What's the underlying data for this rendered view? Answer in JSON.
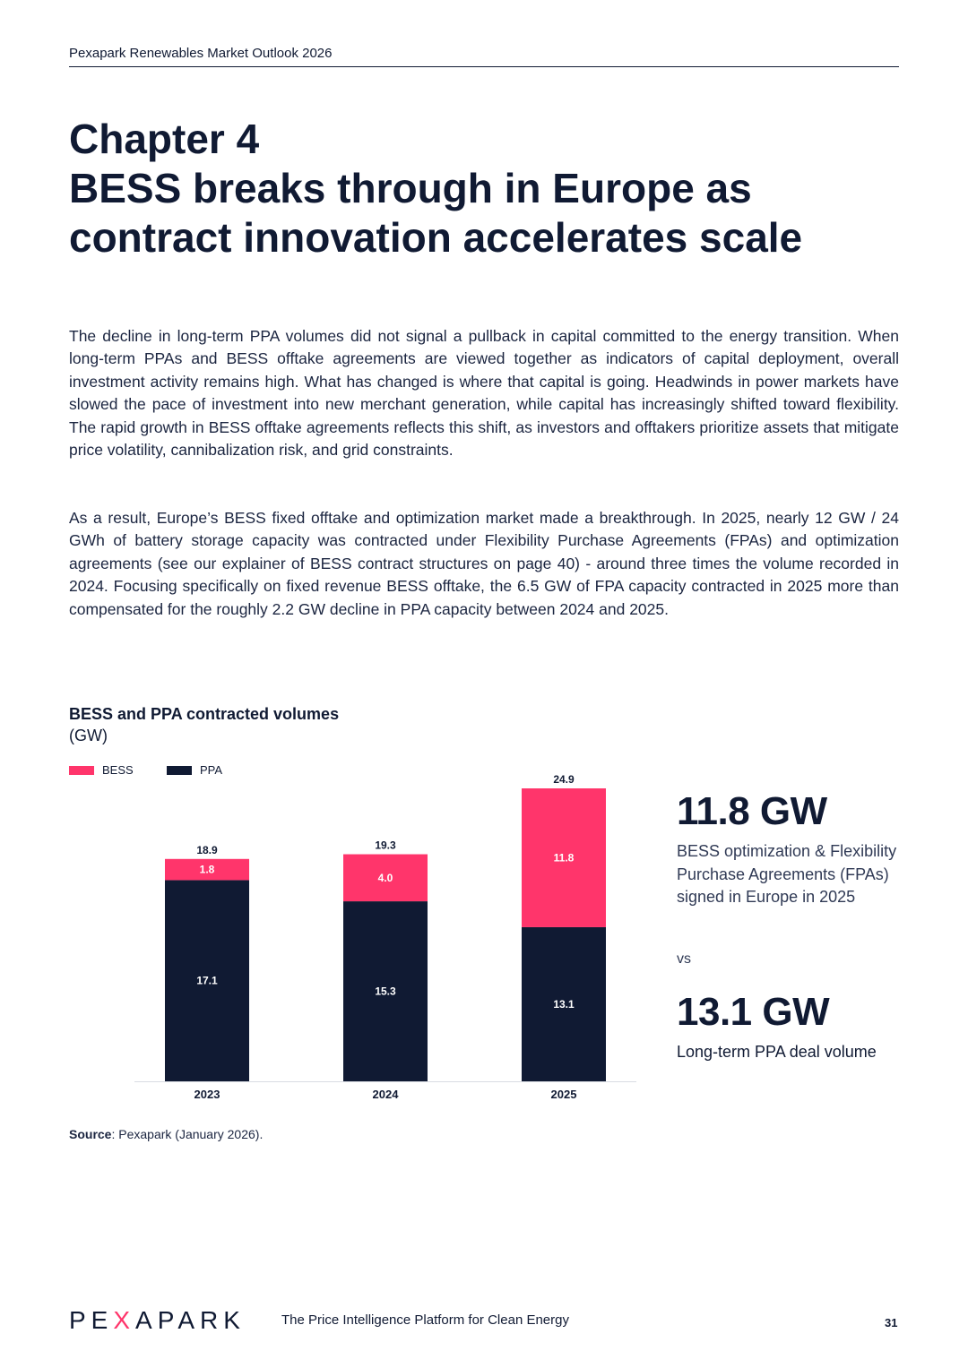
{
  "header": {
    "running_title": "Pexapark Renewables Market Outlook 2026"
  },
  "chapter": {
    "line1": "Chapter 4",
    "line2": "BESS breaks through in Europe as",
    "line3": "contract innovation accelerates scale"
  },
  "paragraphs": [
    "The decline in long-term PPA volumes did not signal a pullback in capital committed to the energy transition. When long-term PPAs and BESS offtake agreements are viewed together as indicators of capital deployment, overall investment activity remains high. What has changed is where that capital is going. Headwinds in power markets have slowed the pace of investment into new merchant generation, while capital has increasingly shifted toward flexibility. The rapid growth in BESS offtake agreements reflects this shift, as investors and offtakers prioritize assets that mitigate price volatility, cannibalization risk, and grid constraints.",
    "As a result, Europe’s BESS fixed offtake and optimization market made a breakthrough. In 2025, nearly 12 GW / 24 GWh of battery storage capacity was contracted under Flexibility Purchase Agreements (FPAs) and optimization agreements (see our explainer of BESS contract structures on page 40) - around three times the volume recorded in 2024. Focusing specifically on fixed revenue BESS offtake, the 6.5 GW of FPA capacity contracted in 2025 more than compensated for the roughly 2.2 GW decline in PPA capacity between 2024 and 2025."
  ],
  "chart_data": {
    "type": "bar",
    "stacked": true,
    "title": "BESS and PPA contracted volumes",
    "unit_label": "(GW)",
    "categories": [
      "2023",
      "2024",
      "2025"
    ],
    "series": [
      {
        "name": "PPA",
        "values": [
          17.1,
          15.3,
          13.1
        ],
        "color": "#101a33"
      },
      {
        "name": "BESS",
        "values": [
          1.8,
          4.0,
          11.8
        ],
        "color": "#ff356b"
      }
    ],
    "value_labels": {
      "PPA": [
        "17.1",
        "15.3",
        "13.1"
      ],
      "BESS": [
        "1.8",
        "4.0",
        "11.8"
      ]
    },
    "totals": [
      18.9,
      19.3,
      24.9
    ],
    "total_labels": [
      "18.9",
      "19.3",
      "24.9"
    ],
    "ylim": [
      0,
      25
    ],
    "legend": [
      "BESS",
      "PPA"
    ],
    "legend_position": "top-left",
    "grid": false
  },
  "kpis": {
    "kpi1_value": "11.8 GW",
    "kpi1_desc": "BESS optimization & Flexibility Purchase Agreements (FPAs) signed in Europe in 2025",
    "vs": "vs",
    "kpi2_value": "13.1 GW",
    "kpi2_desc": "Long-term PPA deal volume"
  },
  "source": {
    "label": "Source",
    "text": ": Pexapark (January 2026)."
  },
  "footer": {
    "logo_part1": "PE",
    "logo_part2": "X",
    "logo_part3": "APARK",
    "tagline": "The Price Intelligence Platform for Clean Energy",
    "page_number": "31"
  }
}
